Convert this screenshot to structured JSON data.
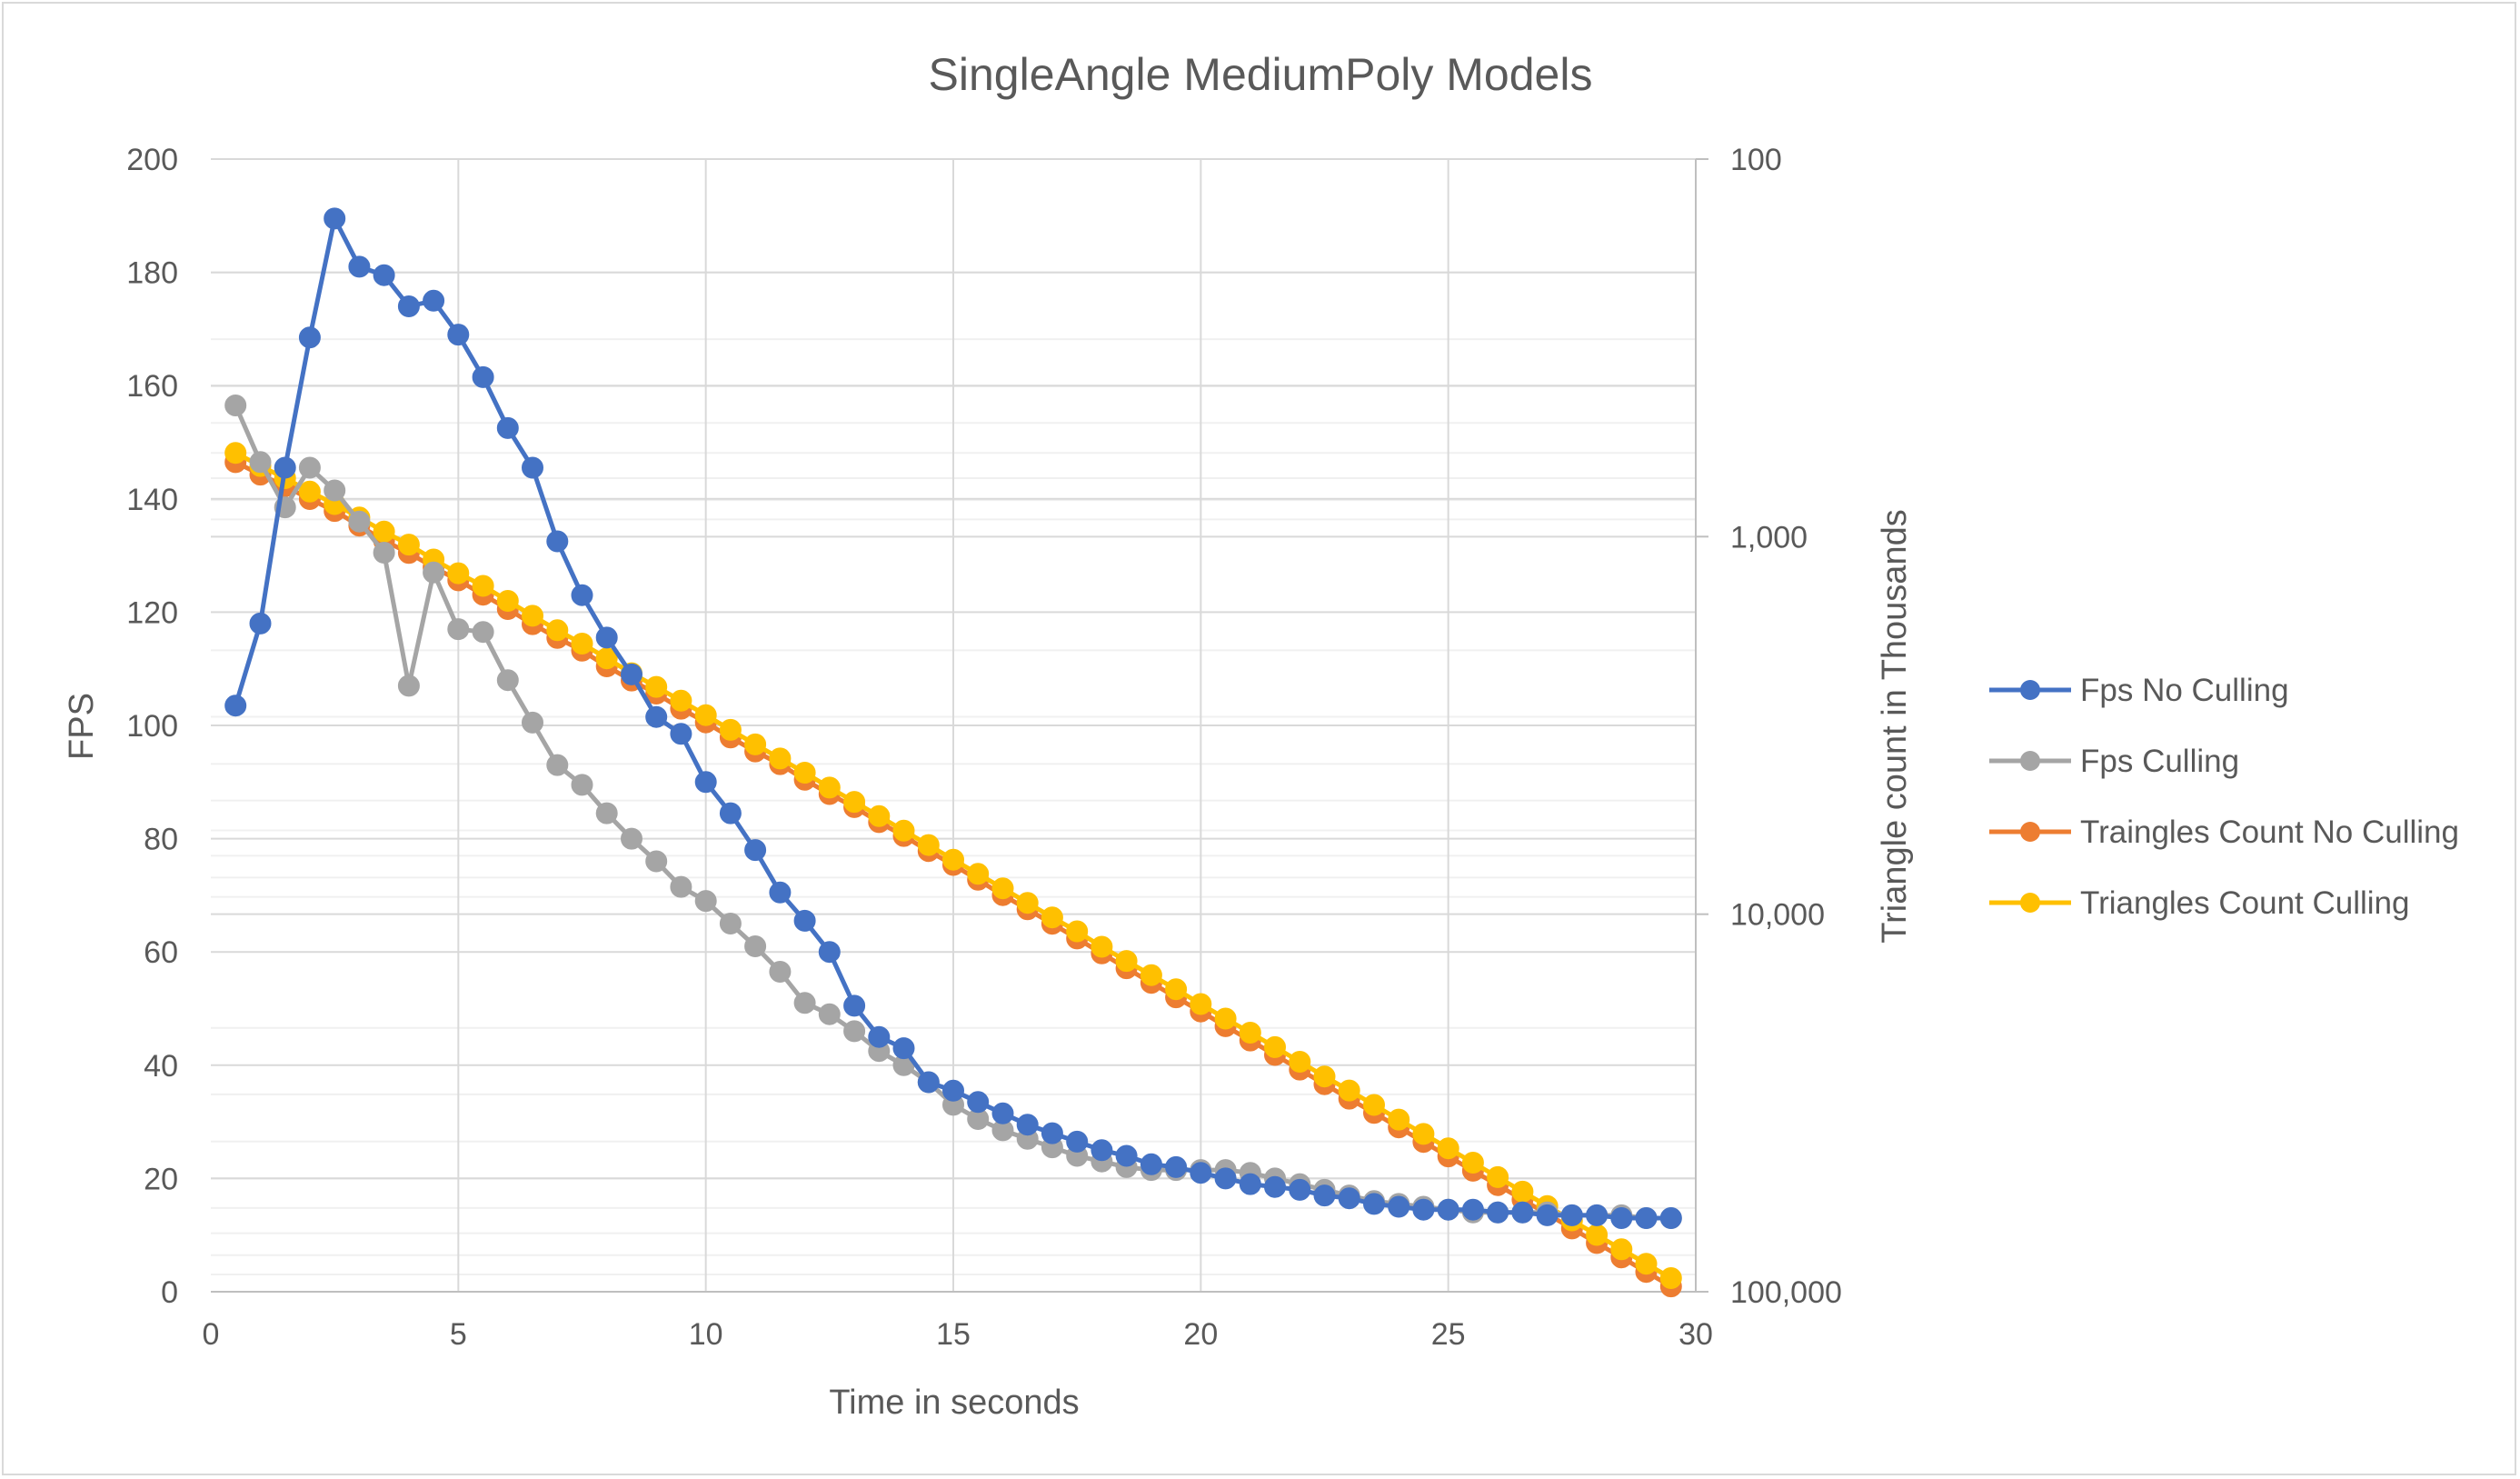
{
  "chart_data": {
    "type": "line",
    "title": "SingleAngle MediumPoly Models",
    "xlabel": "Time in seconds",
    "ylabel": "FPS",
    "y2label": "Triangle count in Thousands",
    "xlim": [
      0,
      30
    ],
    "ylim": [
      0,
      200
    ],
    "y2lim": [
      100,
      100000
    ],
    "y2_scale": "log",
    "y2_reversed": true,
    "grid": true,
    "legend_position": "right",
    "x_ticks": [
      "0",
      "5",
      "10",
      "15",
      "20",
      "25",
      "30"
    ],
    "y_ticks": [
      "0",
      "20",
      "40",
      "60",
      "80",
      "100",
      "120",
      "140",
      "160",
      "180",
      "200"
    ],
    "y2_ticks": [
      "100",
      "1,000",
      "10,000",
      "100,000"
    ],
    "x": [
      0.5,
      1.0,
      1.5,
      2.0,
      2.5,
      3.0,
      3.5,
      4.0,
      4.5,
      5.0,
      5.5,
      6.0,
      6.5,
      7.0,
      7.5,
      8.0,
      8.5,
      9.0,
      9.5,
      10.0,
      10.5,
      11.0,
      11.5,
      12.0,
      12.5,
      13.0,
      13.5,
      14.0,
      14.5,
      15.0,
      15.5,
      16.0,
      16.5,
      17.0,
      17.5,
      18.0,
      18.5,
      19.0,
      19.5,
      20.0,
      20.5,
      21.0,
      21.5,
      22.0,
      22.5,
      23.0,
      23.5,
      24.0,
      24.5,
      25.0,
      25.5,
      26.0,
      26.5,
      27.0,
      27.5,
      28.0,
      28.5,
      29.0,
      29.5
    ],
    "series": [
      {
        "name": "Fps No Culling",
        "axis": "left",
        "color": "#4472c4",
        "values": [
          103.5,
          118,
          145.5,
          168.5,
          189.5,
          181,
          179.5,
          174,
          175,
          169,
          161.5,
          152.5,
          145.5,
          132.5,
          123,
          115.5,
          109,
          101.5,
          98.5,
          90,
          84.5,
          78,
          70.5,
          65.5,
          60,
          50.5,
          45,
          43,
          37,
          35.5,
          33.5,
          31.5,
          29.5,
          28,
          26.5,
          25,
          24,
          22.5,
          22,
          21,
          20,
          19,
          18.5,
          18,
          17,
          16.5,
          15.5,
          15,
          14.5,
          14.5,
          14.5,
          14,
          14,
          13.5,
          13.5,
          13.5,
          13,
          13,
          13
        ]
      },
      {
        "name": "Fps Culling",
        "axis": "left",
        "color": "#a5a5a5",
        "values": [
          156.5,
          146.5,
          138.5,
          145.5,
          141.5,
          136,
          130.5,
          107,
          127,
          117,
          116.5,
          108,
          100.5,
          93,
          89.5,
          84.5,
          80,
          76,
          71.5,
          69,
          65,
          61,
          56.5,
          51,
          49,
          46,
          42.5,
          40,
          37,
          33,
          30.5,
          28.5,
          27,
          25.5,
          24,
          23,
          22,
          21.5,
          21.5,
          21.5,
          21.5,
          21,
          20,
          19,
          18,
          17,
          16,
          15.5,
          15,
          14.5,
          14,
          14,
          14,
          14,
          13.5,
          13.5,
          13.5,
          13,
          13
        ]
      },
      {
        "name": "Traingles Count No Culling",
        "axis": "right",
        "color": "#ed7d31",
        "values": [
          635,
          685,
          735,
          795,
          855,
          935,
          1025,
          1105,
          1205,
          1305,
          1425,
          1555,
          1705,
          1855,
          2005,
          2205,
          2405,
          2605,
          2855,
          3105,
          3405,
          3705,
          4005,
          4405,
          4805,
          5205,
          5705,
          6205,
          6805,
          7405,
          8105,
          8905,
          9705,
          10600,
          11600,
          12700,
          13900,
          15200,
          16600,
          18100,
          19800,
          21600,
          23600,
          25800,
          28200,
          30800,
          33600,
          36700,
          40100,
          43800,
          47800,
          52200,
          57000,
          62300,
          68000,
          74300,
          81100,
          88600,
          96800
        ]
      },
      {
        "name": "Triangles Count Culling",
        "axis": "right",
        "color": "#ffc000",
        "values": [
          600,
          650,
          700,
          760,
          820,
          890,
          970,
          1050,
          1150,
          1250,
          1350,
          1480,
          1620,
          1770,
          1920,
          2100,
          2300,
          2500,
          2720,
          2970,
          3250,
          3550,
          3870,
          4220,
          4620,
          5040,
          5500,
          6010,
          6560,
          7170,
          7820,
          8540,
          9330,
          10200,
          11100,
          12200,
          13300,
          14500,
          15800,
          17300,
          18900,
          20600,
          22500,
          24600,
          26900,
          29300,
          32000,
          35000,
          38200,
          41700,
          45500,
          49700,
          54300,
          59300,
          64700,
          70700,
          77200,
          84300,
          92000
        ]
      }
    ]
  }
}
